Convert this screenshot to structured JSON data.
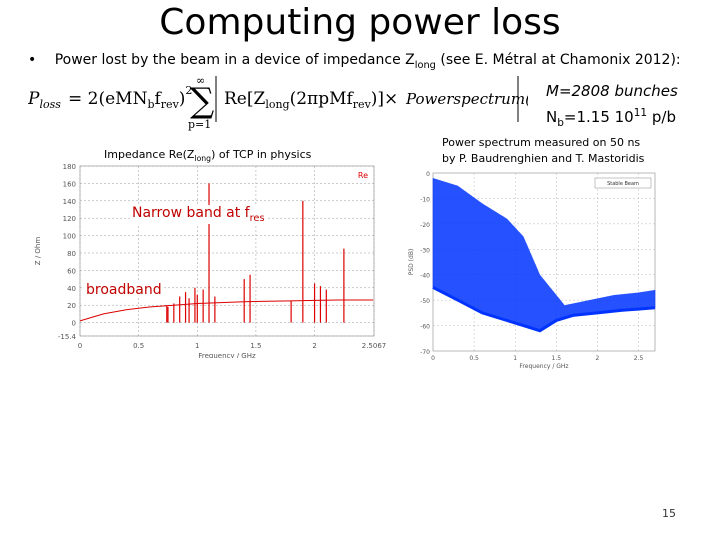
{
  "slide": {
    "title": "Computing power loss",
    "bullet_text": "Power lost by the beam in a device of impedance Z",
    "bullet_sub": "long",
    "bullet_tail": " (see E. Métral at Chamonix 2012):",
    "formula_lhs": "P",
    "formula_lhs_sub": "loss",
    "params_m": "M=2808 bunches",
    "params_nb_prefix": "N",
    "params_nb_sub": "b",
    "params_nb_value": "=1.15 10",
    "params_nb_exp": "11",
    "params_nb_unit": " p/b",
    "impedance_caption": "Impedance Re(Z",
    "impedance_caption_sub": "long",
    "impedance_caption_tail": ") of TCP in physics",
    "power_caption_line1": "Power spectrum measured on 50 ns",
    "power_caption_line2": "by P. Baudrenghien and T. Mastoridis",
    "anno_narrow": "Narrow band at f",
    "anno_narrow_sub": "res",
    "anno_broad": "broadband",
    "page_number": "15"
  },
  "chart_data": [
    {
      "type": "line",
      "title": "",
      "xlabel": "Frequency / GHz",
      "ylabel": "Z / Ohm",
      "x_ticks": [
        "0",
        "0.5",
        "1",
        "1.5",
        "2",
        "2.5067"
      ],
      "y_ticks": [
        "180",
        "160",
        "140",
        "120",
        "100",
        "80",
        "60",
        "40",
        "20",
        "0",
        "-15.4"
      ],
      "xlim": [
        0,
        2.5067
      ],
      "ylim": [
        -15.4,
        180
      ],
      "legend_text": "Re",
      "color": "#dd0000",
      "broadband_x": [
        0,
        0.1,
        0.2,
        0.4,
        0.6,
        0.8,
        1.0,
        1.2,
        1.4,
        1.6,
        1.8,
        2.0,
        2.2,
        2.5
      ],
      "broadband_y": [
        2,
        6,
        10,
        15,
        18,
        20,
        22,
        23,
        24,
        24.5,
        25,
        25.5,
        26,
        26
      ],
      "peaks_x": [
        0.74,
        0.75,
        0.8,
        0.85,
        0.9,
        0.93,
        0.98,
        1.0,
        1.05,
        1.1,
        1.15,
        1.4,
        1.45,
        1.8,
        1.9,
        2.0,
        2.05,
        2.1,
        2.25
      ],
      "peaks_y": [
        20,
        18,
        22,
        30,
        35,
        28,
        40,
        32,
        38,
        160,
        30,
        50,
        55,
        25,
        140,
        45,
        42,
        38,
        85
      ]
    },
    {
      "type": "line",
      "title": "",
      "xlabel": "Frequency / GHz",
      "ylabel": "PSD (dB)",
      "x_ticks": [
        "0",
        "0.5",
        "1",
        "1.5",
        "2",
        "2.5"
      ],
      "y_ticks": [
        "0",
        "-10",
        "-20",
        "-30",
        "-40",
        "-50",
        "-60",
        "-70"
      ],
      "xlim": [
        0,
        2.7
      ],
      "ylim": [
        -70,
        0
      ],
      "legend_text": "Stable Beam",
      "color": "#0033ff",
      "envelope_top_x": [
        0,
        0.3,
        0.6,
        0.9,
        1.1,
        1.3,
        1.6,
        1.9,
        2.2,
        2.5,
        2.7
      ],
      "envelope_top_y": [
        -2,
        -5,
        -12,
        -18,
        -25,
        -40,
        -52,
        -50,
        -48,
        -47,
        -46
      ],
      "envelope_bottom_x": [
        0,
        0.3,
        0.6,
        0.9,
        1.1,
        1.3,
        1.5,
        1.7,
        2.0,
        2.3,
        2.7
      ],
      "envelope_bottom_y": [
        -45,
        -50,
        -55,
        -58,
        -60,
        -62,
        -58,
        -56,
        -55,
        -54,
        -53
      ]
    }
  ]
}
